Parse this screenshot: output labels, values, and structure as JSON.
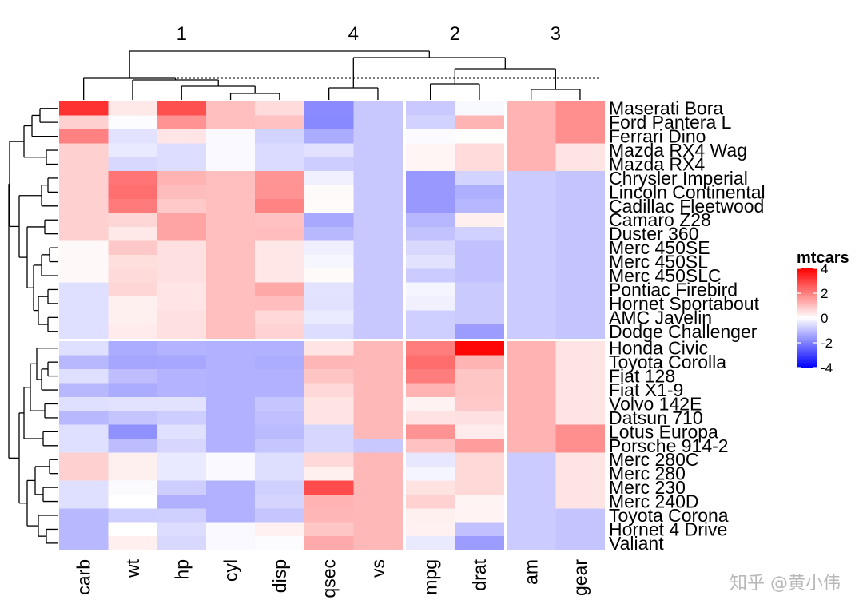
{
  "chart_data": {
    "type": "heatmap",
    "title": "",
    "legend": {
      "title": "mtcars",
      "ticks": [
        4,
        2,
        0,
        -2,
        -4
      ],
      "range": [
        -4,
        4
      ],
      "low_color": "#0000ff",
      "mid_color": "#ffffff",
      "high_color": "#ff0000",
      "placement": "right"
    },
    "column_cluster_labels": [
      "1",
      "4",
      "2",
      "3"
    ],
    "columns": [
      "carb",
      "wt",
      "hp",
      "cyl",
      "disp",
      "qsec",
      "vs",
      "mpg",
      "drat",
      "am",
      "gear"
    ],
    "column_groups": [
      [
        0,
        1,
        2,
        3,
        4
      ],
      [
        5,
        6
      ],
      [
        7,
        8
      ],
      [
        9,
        10
      ]
    ],
    "rows": [
      "Maserati Bora",
      "Ford Pantera L",
      "Ferrari Dino",
      "Mazda RX4 Wag",
      "Mazda RX4",
      "Chrysler Imperial",
      "Lincoln Continental",
      "Cadillac Fleetwood",
      "Camaro Z28",
      "Duster 360",
      "Merc 450SE",
      "Merc 450SL",
      "Merc 450SLC",
      "Pontiac Firebird",
      "Hornet Sportabout",
      "AMC Javelin",
      "Dodge Challenger",
      "Honda Civic",
      "Toyota Corolla",
      "Fiat 128",
      "Fiat X1-9",
      "Volvo 142E",
      "Datsun 710",
      "Lotus Europa",
      "Porsche 914-2",
      "Merc 280C",
      "Merc 280",
      "Merc 230",
      "Merc 240D",
      "Toyota Corona",
      "Hornet 4 Drive",
      "Valiant"
    ],
    "row_groups": [
      [
        0,
        16
      ],
      [
        17,
        31
      ]
    ],
    "values": [
      [
        3.21,
        0.36,
        2.75,
        1.01,
        0.57,
        -1.82,
        -0.87,
        -0.84,
        -0.11,
        1.19,
        1.78
      ],
      [
        0.74,
        -0.05,
        1.71,
        1.01,
        0.97,
        -1.87,
        -0.87,
        -0.71,
        1.17,
        1.19,
        1.78
      ],
      [
        1.98,
        -0.45,
        0.41,
        -0.1,
        -0.69,
        -1.31,
        -0.87,
        -0.06,
        0.04,
        1.19,
        1.78
      ],
      [
        0.74,
        -0.35,
        -0.54,
        -0.1,
        -0.57,
        -0.46,
        -0.87,
        0.15,
        0.57,
        1.19,
        0.42
      ],
      [
        0.74,
        -0.61,
        -0.54,
        -0.1,
        -0.57,
        -0.78,
        -0.87,
        0.15,
        0.57,
        1.19,
        0.42
      ],
      [
        0.74,
        2.17,
        1.2,
        1.01,
        1.68,
        -0.24,
        -0.87,
        -1.61,
        -0.69,
        -0.81,
        -0.93
      ],
      [
        0.74,
        2.26,
        1.05,
        1.01,
        1.71,
        0.08,
        -0.87,
        -1.61,
        -1.25,
        -0.81,
        -0.93
      ],
      [
        0.74,
        2.08,
        0.85,
        1.01,
        1.95,
        0.07,
        -0.87,
        -1.61,
        -1.13,
        -0.81,
        -0.93
      ],
      [
        0.74,
        0.64,
        1.43,
        1.01,
        0.97,
        -1.36,
        -0.87,
        -1.13,
        0.25,
        -0.81,
        -0.93
      ],
      [
        0.74,
        0.36,
        1.43,
        1.01,
        1.04,
        -1.12,
        -0.87,
        -0.96,
        -0.72,
        -0.81,
        -0.93
      ],
      [
        0.11,
        0.87,
        0.49,
        1.01,
        0.37,
        -0.25,
        -0.87,
        -0.61,
        -0.98,
        -0.81,
        -0.93
      ],
      [
        0.11,
        0.52,
        0.49,
        1.01,
        0.37,
        -0.14,
        -0.87,
        -0.46,
        -0.98,
        -0.81,
        -0.93
      ],
      [
        0.11,
        0.58,
        0.49,
        1.01,
        0.37,
        0.08,
        -0.87,
        -0.81,
        -0.98,
        -0.81,
        -0.93
      ],
      [
        -0.5,
        0.64,
        0.41,
        1.01,
        1.37,
        -0.44,
        -0.87,
        -0.15,
        -0.83,
        -0.81,
        -0.93
      ],
      [
        -0.5,
        0.23,
        0.41,
        1.01,
        1.04,
        -0.46,
        -0.87,
        -0.23,
        -0.83,
        -0.81,
        -0.93
      ],
      [
        -0.5,
        0.23,
        0.49,
        1.01,
        0.59,
        -0.31,
        -0.87,
        -0.76,
        -0.83,
        -0.81,
        -0.93
      ],
      [
        -0.5,
        0.31,
        0.49,
        1.01,
        0.69,
        -0.54,
        -0.87,
        -0.76,
        -1.56,
        -0.81,
        -0.93
      ],
      [
        -0.5,
        -1.31,
        -1.19,
        -1.22,
        -1.23,
        0.43,
        1.12,
        2.04,
        3.91,
        1.19,
        0.42
      ],
      [
        -1.12,
        -1.39,
        -1.38,
        -1.22,
        -1.29,
        1.15,
        1.12,
        2.29,
        1.17,
        1.19,
        0.42
      ],
      [
        -0.5,
        -1.03,
        -1.19,
        -1.22,
        -1.23,
        0.91,
        1.12,
        2.04,
        0.9,
        1.19,
        0.42
      ],
      [
        -1.12,
        -1.31,
        -1.19,
        -1.22,
        -1.23,
        0.59,
        1.12,
        1.2,
        0.9,
        1.19,
        0.42
      ],
      [
        -0.5,
        -0.45,
        -0.45,
        -1.22,
        -0.89,
        0.43,
        1.12,
        0.2,
        0.85,
        1.19,
        0.42
      ],
      [
        -1.12,
        -0.92,
        -0.78,
        -1.22,
        -0.99,
        0.43,
        1.12,
        0.45,
        0.48,
        1.19,
        0.42
      ],
      [
        -0.5,
        -1.74,
        -0.49,
        -1.22,
        -1.09,
        -0.64,
        1.12,
        1.71,
        0.32,
        1.19,
        1.78
      ],
      [
        -0.5,
        -1.05,
        -0.64,
        -1.22,
        -0.89,
        -0.64,
        -0.87,
        0.98,
        1.55,
        1.19,
        1.78
      ],
      [
        0.74,
        0.23,
        -0.35,
        -0.1,
        -0.51,
        0.59,
        1.12,
        -0.38,
        0.61,
        -0.81,
        0.42
      ],
      [
        0.74,
        0.23,
        -0.35,
        -0.1,
        -0.51,
        0.23,
        1.12,
        -0.15,
        0.61,
        -0.81,
        0.42
      ],
      [
        -0.5,
        -0.07,
        -0.78,
        -1.22,
        -0.73,
        2.83,
        1.12,
        0.45,
        0.61,
        -0.81,
        0.42
      ],
      [
        -0.5,
        -0.0,
        -1.24,
        -1.22,
        -0.68,
        1.2,
        1.12,
        0.72,
        0.17,
        -0.81,
        0.42
      ],
      [
        -1.12,
        -0.77,
        -0.73,
        -1.22,
        -0.89,
        1.15,
        1.12,
        0.23,
        0.19,
        -0.81,
        -0.93
      ],
      [
        -1.12,
        -0.0,
        -0.54,
        -0.1,
        0.22,
        0.89,
        1.12,
        0.22,
        -0.97,
        -0.81,
        -0.93
      ],
      [
        -1.12,
        0.25,
        -0.61,
        -0.1,
        -0.05,
        1.33,
        1.12,
        -0.33,
        -1.56,
        -0.81,
        -0.93
      ]
    ]
  },
  "watermark": "知乎 @黄小伟"
}
